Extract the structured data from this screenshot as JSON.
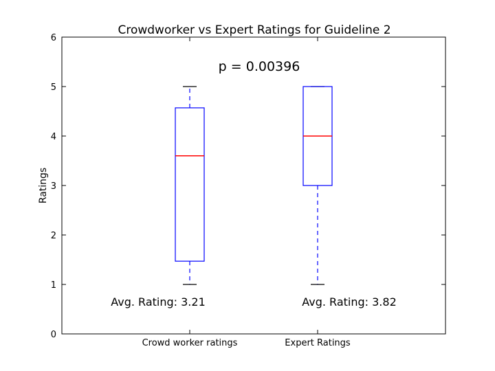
{
  "chart_data": {
    "type": "box",
    "title": "Crowdworker vs Expert Ratings for Guideline 2",
    "xlabel": "",
    "ylabel": "Ratings",
    "ylim": [
      0,
      6
    ],
    "yticks": [
      "0",
      "1",
      "2",
      "3",
      "4",
      "5",
      "6"
    ],
    "categories": [
      "Crowd worker ratings",
      "Expert Ratings"
    ],
    "boxes": [
      {
        "whisker_low": 1,
        "q1": 1.47,
        "median": 3.6,
        "q3": 4.57,
        "whisker_high": 5
      },
      {
        "whisker_low": 1,
        "q1": 3,
        "median": 4,
        "q3": 5,
        "whisker_high": 5
      }
    ],
    "annotations": {
      "p_value": "p = 0.00396",
      "avg_labels": [
        "Avg. Rating: 3.21",
        "Avg. Rating: 3.82"
      ]
    },
    "grid": false,
    "colors": {
      "box": "#0000ff",
      "median": "#ff0000",
      "cap": "#000000",
      "axis": "#000000"
    }
  }
}
